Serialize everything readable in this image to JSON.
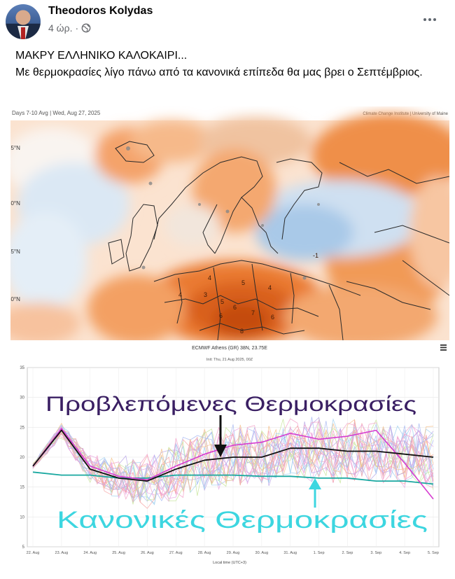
{
  "post": {
    "author": "Theodoros Kolydas",
    "time": "4 ώρ.",
    "separator": "·",
    "visibility_icon": "globe-icon",
    "more_icon": "more-options-icon",
    "text_line1": "ΜΑΚΡΥ ΕΛΛΗΝΙΚΟ ΚΑΛΟΚΑΙΡΙ...",
    "text_line2": "Με θερμοκρασίες λίγο πάνω από τα κανονικά επίπεδα θα μας βρει ο Σεπτέμβριος."
  },
  "map": {
    "header_left": "Days 7-10 Avg | Wed, Aug 27, 2025",
    "header_right": "Climate Change Institute | University of Maine",
    "lat_labels": [
      "65°N",
      "60°N",
      "55°N",
      "50°N"
    ],
    "anomaly_labels": [
      "4",
      "4",
      "3",
      "5",
      "5",
      "4",
      "7",
      "6",
      "6",
      "8",
      "6",
      "-1"
    ],
    "colors": {
      "warm_light": "#f6b98a",
      "warm": "#f08a3e",
      "warm_strong": "#e0621d",
      "warm_deep": "#c44b10",
      "cool_light": "#d6e6f4",
      "cool": "#a9c9e8"
    }
  },
  "chart_data": {
    "type": "line",
    "title": "ECMWF Athens (GR) 38N, 23.75E",
    "subtitle": "Init: Thu, 21 Aug 2025, 00Z",
    "xlabel": "Local time (UTC+3)",
    "ylabel": "",
    "ylim": [
      5,
      35
    ],
    "yticks": [
      5,
      10,
      15,
      20,
      25,
      30,
      35
    ],
    "categories": [
      "22. Aug",
      "23. Aug",
      "24. Aug",
      "25. Aug",
      "26. Aug",
      "27. Aug",
      "28. Aug",
      "29. Aug",
      "30. Aug",
      "31. Aug",
      "1. Sep",
      "2. Sep",
      "3. Sep",
      "4. Sep",
      "5. Sep"
    ],
    "annotation_forecast": "Προβλεπόμενες Θερμοκρασίες",
    "annotation_normal": "Κανονικές Θερμοκρασίες",
    "series": [
      {
        "role": "mean",
        "color": "#111111",
        "values": [
          18.5,
          24.5,
          18.0,
          16.5,
          16.0,
          18.0,
          19.5,
          20.0,
          20.0,
          21.5,
          21.5,
          21.0,
          21.0,
          20.5,
          20.0
        ]
      },
      {
        "role": "highlight",
        "color": "#d63cd0",
        "values": [
          18.5,
          24.8,
          18.5,
          16.8,
          16.2,
          18.5,
          20.5,
          22.0,
          22.5,
          24.0,
          23.0,
          23.5,
          24.5,
          19.0,
          13.0
        ]
      },
      {
        "role": "climatology",
        "color": "#19a8a0",
        "values": [
          17.5,
          17.0,
          17.0,
          16.5,
          16.5,
          17.0,
          17.0,
          17.0,
          16.8,
          16.8,
          16.5,
          16.5,
          16.0,
          16.0,
          15.5
        ]
      }
    ],
    "ensemble_members": 25,
    "colors": {
      "forecast_text": "#3a1f63",
      "normal_text": "#3dd6e0",
      "arrow_forecast": "#111111",
      "arrow_normal": "#3dd6e0"
    }
  }
}
